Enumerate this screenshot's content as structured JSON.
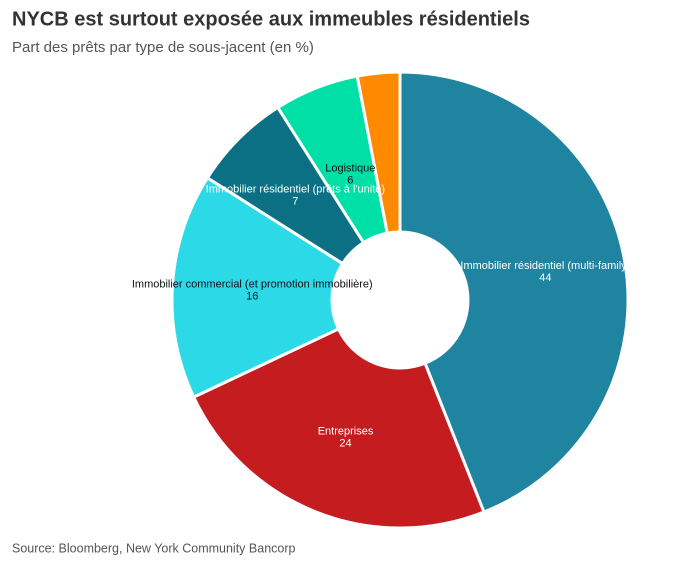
{
  "chart_data": {
    "type": "donut",
    "title": "NYCB est surtout exposée aux immeubles résidentiels",
    "subtitle": "Part des prêts par type de sous-jacent (en %)",
    "source": "Source: Bloomberg, New York Community Bancorp",
    "categories": [
      "Immobilier résidentiel (multi-family)",
      "Entreprises",
      "Immobilier commercial (et promotion immobilière)",
      "Immobilier résidentiel (prêts à l'unité)",
      "Logistique",
      null
    ],
    "values": [
      44,
      24,
      16,
      7,
      6,
      3
    ],
    "colors": [
      "#1f84a0",
      "#c41c1f",
      "#2cd9e6",
      "#0c7085",
      "#00dfa6",
      "#ff8a00"
    ]
  }
}
